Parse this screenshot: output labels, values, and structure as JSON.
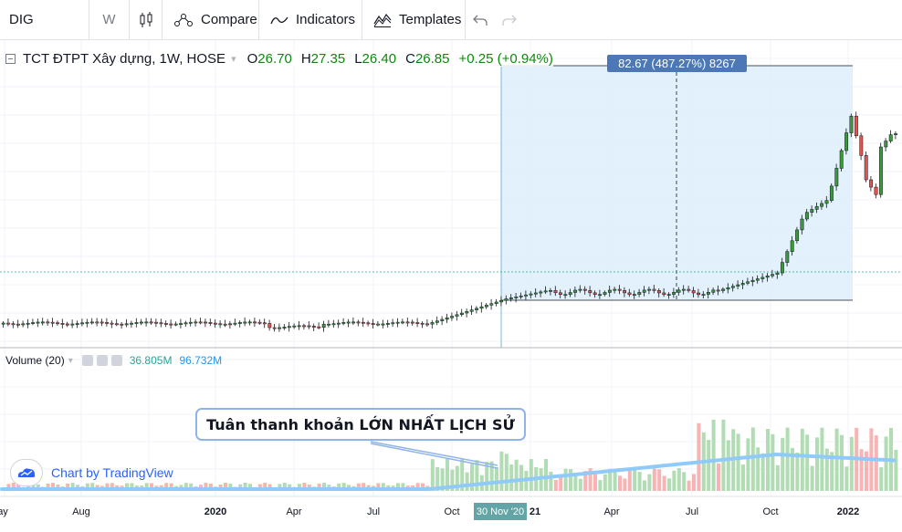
{
  "toolbar": {
    "symbol": "DIG",
    "interval": "W",
    "candle_icon": "candles-icon",
    "compare_label": "Compare",
    "compare_icon": "compare-icon",
    "indicators_label": "Indicators",
    "indicators_icon": "indicators-icon",
    "templates_label": "Templates",
    "templates_icon": "templates-icon",
    "undo_icon": "undo-icon",
    "redo_icon": "redo-icon"
  },
  "legend": {
    "title": "TCT ĐTPT Xây dựng, 1W, HOSE",
    "open_label": "O",
    "open": "26.70",
    "high_label": "H",
    "high": "27.35",
    "low_label": "L",
    "low": "26.40",
    "close_label": "C",
    "close": "26.85",
    "change": "+0.25 (+0.94%)"
  },
  "measure_label": "82.67 (487.27%) 8267",
  "volume_legend": {
    "title": "Volume (20)",
    "value1": "36.805M",
    "value2": "96.732M"
  },
  "watermark": "Chart by TradingView",
  "annotation": "Tuân thanh khoản LỚN NHẤT LỊCH SỬ",
  "date_tag": "30 Nov '20",
  "colors": {
    "up": "#26a69a",
    "up_candle": "#3a9a3a",
    "down": "#ef5350",
    "range_fill": "#ddeefc",
    "volume_ma": "#90caf9"
  },
  "chart_data": {
    "type": "candlestick",
    "x_axis_labels": [
      "ay",
      "Aug",
      "2020",
      "Apr",
      "Jul",
      "Oct",
      "30 Nov '20",
      "21",
      "Apr",
      "Jul",
      "Oct",
      "2022"
    ],
    "last_bar": {
      "open": 26.7,
      "high": 27.35,
      "low": 26.4,
      "close": 26.85,
      "change": "+0.25 (+0.94%)"
    },
    "measure": {
      "change": 82.67,
      "percent": 487.27,
      "bars": 8267
    },
    "volume_ma_length": 20,
    "volume_values": [
      "36.805M",
      "96.732M"
    ]
  }
}
